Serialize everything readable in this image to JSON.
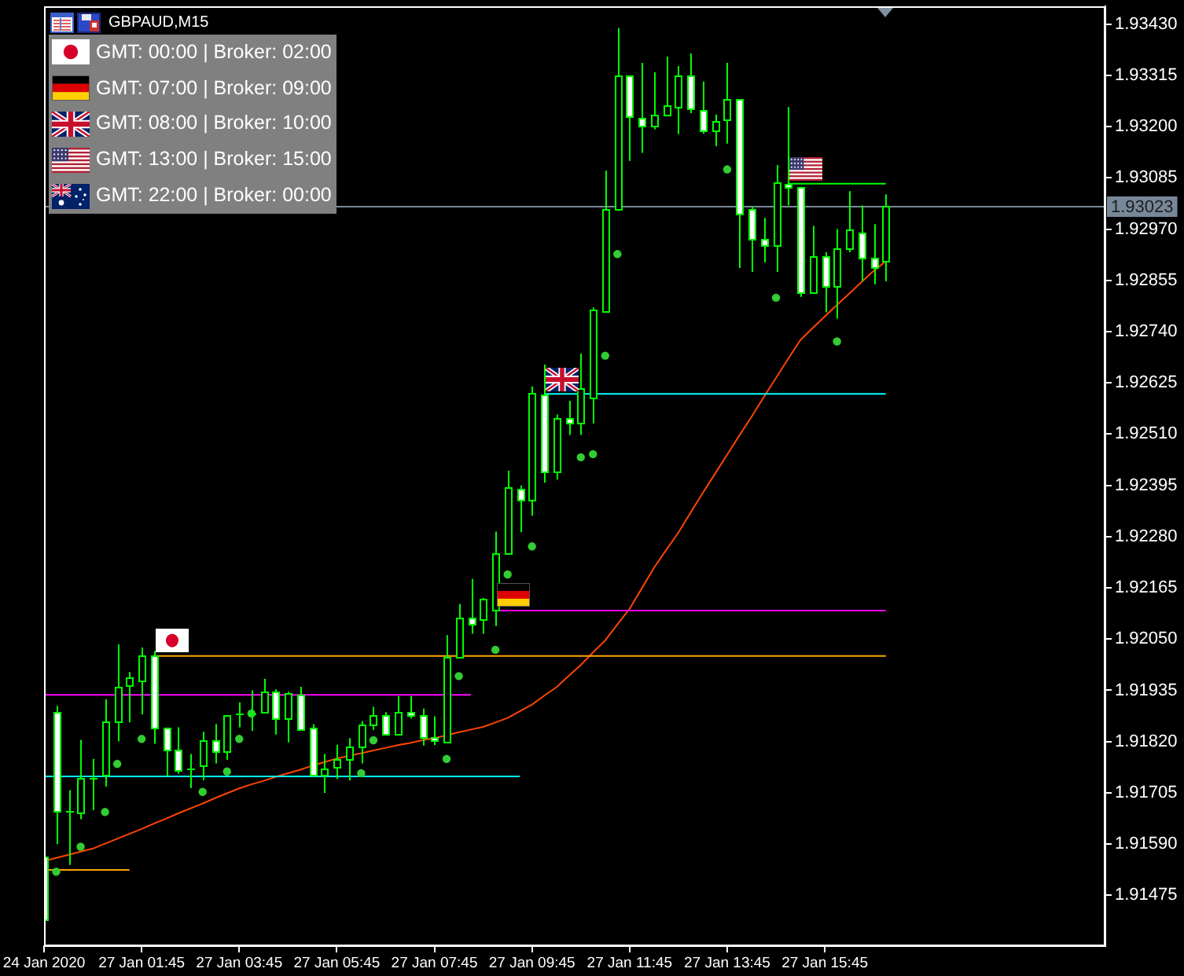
{
  "chart_data": {
    "type": "candlestick",
    "title": "GBPAUD,M15",
    "annotations": [
      "GMT: 00:00 | Broker: 02:00",
      "GMT: 07:00 | Broker: 09:00",
      "GMT: 08:00 | Broker: 10:00",
      "GMT: 13:00 | Broker: 15:00",
      "GMT: 22:00 | Broker: 00:00"
    ],
    "color": "#00ff00",
    "colors": [
      "#ffffff",
      "#ffffff",
      "#00ff00",
      "#000000",
      "#00ff00",
      "#000000",
      "#000000",
      "#000000",
      "#000000",
      "#ffffff",
      "#ffffff",
      "#ffffff",
      "#00ff00",
      "#000000",
      "#ffffff",
      "#000000",
      "#00ff00",
      "#00ff00",
      "#000000",
      "#ffffff",
      "#000000",
      "#ffffff",
      "#ffffff",
      "#000000",
      "#000000",
      "#000000",
      "#000000",
      "#000000",
      "#ffffff",
      "#000000",
      "#ffffff",
      "#ffffff",
      "#ffffff",
      "#000000",
      "#000000",
      "#ffffff",
      "#000000",
      "#000000",
      "#000000",
      "#ffffff",
      "#000000",
      "#ffffff",
      "#000000",
      "#ffffff",
      "#000000",
      "#000000",
      "#000000",
      "#000000",
      "#ffffff",
      "#ffffff",
      "#000000",
      "#000000",
      "#000000",
      "#ffffff",
      "#ffffff",
      "#000000",
      "#000000",
      "#ffffff",
      "#ffffff",
      "#ffffff",
      "#000000",
      "#ffffff",
      "#ffffff",
      "#000000",
      "#ffffff",
      "#000000",
      "#000000",
      "#ffffff",
      "#ffffff",
      "#000000",
      null,
      null,
      null,
      null,
      null,
      null,
      null,
      null,
      null,
      null,
      null,
      null,
      null,
      null,
      null,
      null,
      null,
      null
    ],
    "categories": [
      "24 Jan 2020",
      null,
      null,
      null,
      null,
      null,
      null,
      null,
      "27 Jan 01:45",
      null,
      null,
      null,
      null,
      null,
      null,
      null,
      "27 Jan 03:45",
      null,
      null,
      null,
      null,
      null,
      null,
      null,
      "27 Jan 05:45",
      null,
      null,
      null,
      null,
      null,
      null,
      null,
      "27 Jan 07:45",
      null,
      null,
      null,
      null,
      null,
      null,
      null,
      "27 Jan 09:45",
      null,
      null,
      null,
      null,
      null,
      null,
      null,
      "27 Jan 11:45",
      null,
      null,
      null,
      null,
      null,
      null,
      null,
      "27 Jan 13:45",
      null,
      null,
      null,
      null,
      null,
      null,
      null,
      "27 Jan 15:45",
      null,
      null,
      null,
      null,
      null,
      null,
      null,
      null,
      null,
      null,
      null,
      null,
      null,
      null,
      null,
      null,
      null,
      null,
      null,
      null,
      null,
      null,
      null
    ],
    "ohlc": [
      [
        1.91561,
        1.91568,
        1.91413,
        1.9142
      ],
      [
        1.91886,
        1.919,
        1.9159,
        1.91664
      ],
      [
        1.91663,
        1.91711,
        1.91543,
        1.91663
      ],
      [
        1.9166,
        1.91824,
        1.91646,
        1.91739
      ],
      [
        1.91739,
        1.91781,
        1.91666,
        1.91739
      ],
      [
        1.91744,
        1.91915,
        1.91719,
        1.91865
      ],
      [
        1.91864,
        1.92038,
        1.91821,
        1.91942
      ],
      [
        1.91946,
        1.91976,
        1.91863,
        1.91963
      ],
      [
        1.91958,
        1.92031,
        1.91881,
        1.92012
      ],
      [
        1.92012,
        1.92023,
        1.91815,
        1.91851
      ],
      [
        1.91851,
        1.91851,
        1.91742,
        1.91801
      ],
      [
        1.91802,
        1.91852,
        1.91748,
        1.91755
      ],
      [
        1.91758,
        1.91792,
        1.91716,
        1.91758
      ],
      [
        1.91765,
        1.91842,
        1.91733,
        1.91824
      ],
      [
        1.91823,
        1.91859,
        1.91771,
        1.91797
      ],
      [
        1.91797,
        1.91879,
        1.91779,
        1.91879
      ],
      [
        1.91883,
        1.91908,
        1.91852,
        1.91883
      ],
      [
        1.91883,
        1.91935,
        1.91844,
        1.91883
      ],
      [
        1.91888,
        1.91961,
        1.91884,
        1.91932
      ],
      [
        1.91932,
        1.91937,
        1.91836,
        1.91872
      ],
      [
        1.91872,
        1.91932,
        1.91818,
        1.91928
      ],
      [
        1.91926,
        1.91943,
        1.91848,
        1.91848
      ],
      [
        1.91852,
        1.91859,
        1.91744,
        1.91744
      ],
      [
        1.91744,
        1.91792,
        1.91705,
        1.9176
      ],
      [
        1.91763,
        1.91813,
        1.91736,
        1.91782
      ],
      [
        1.91781,
        1.91828,
        1.91733,
        1.91809
      ],
      [
        1.91808,
        1.91866,
        1.91771,
        1.91859
      ],
      [
        1.91857,
        1.91898,
        1.91846,
        1.9188
      ],
      [
        1.9188,
        1.91886,
        1.91833,
        1.91836
      ],
      [
        1.91836,
        1.91922,
        1.91836,
        1.91887
      ],
      [
        1.91887,
        1.91922,
        1.91872,
        1.91878
      ],
      [
        1.9188,
        1.91894,
        1.91811,
        1.91829
      ],
      [
        1.91831,
        1.91877,
        1.91812,
        1.91824
      ],
      [
        1.91821,
        1.92059,
        1.91821,
        1.9201
      ],
      [
        1.9201,
        1.92129,
        1.9201,
        1.92097
      ],
      [
        1.92097,
        1.92185,
        1.92062,
        1.92085
      ],
      [
        1.92095,
        1.92142,
        1.92062,
        1.92142
      ],
      [
        1.92114,
        1.92291,
        1.92079,
        1.92244
      ],
      [
        1.92244,
        1.92428,
        1.92244,
        1.92391
      ],
      [
        1.92388,
        1.92395,
        1.9229,
        1.92364
      ],
      [
        1.92363,
        1.92617,
        1.92327,
        1.92602
      ],
      [
        1.926,
        1.92666,
        1.92401,
        1.92426
      ],
      [
        1.92425,
        1.92554,
        1.92408,
        1.92546
      ],
      [
        1.92546,
        1.92585,
        1.92508,
        1.92534
      ],
      [
        1.92534,
        1.92691,
        1.92508,
        1.92612
      ],
      [
        1.92591,
        1.92794,
        1.92534,
        1.92788
      ],
      [
        1.92786,
        1.93101,
        1.92783,
        1.93016
      ],
      [
        1.93015,
        1.93421,
        1.93011,
        1.93314
      ],
      [
        1.93314,
        1.93314,
        1.93123,
        1.93223
      ],
      [
        1.9322,
        1.93343,
        1.93141,
        1.93202
      ],
      [
        1.93202,
        1.93322,
        1.93194,
        1.93227
      ],
      [
        1.93227,
        1.93357,
        1.93227,
        1.93248
      ],
      [
        1.93244,
        1.93336,
        1.93183,
        1.93314
      ],
      [
        1.93314,
        1.93364,
        1.9323,
        1.93241
      ],
      [
        1.93237,
        1.93301,
        1.93184,
        1.93191
      ],
      [
        1.93191,
        1.93227,
        1.93156,
        1.93213
      ],
      [
        1.93216,
        1.93343,
        1.93162,
        1.93262
      ],
      [
        1.93262,
        1.93262,
        1.92883,
        1.93006
      ],
      [
        1.93016,
        1.9302,
        1.92874,
        1.92949
      ],
      [
        1.92949,
        1.92995,
        1.92895,
        1.92935
      ],
      [
        1.92935,
        1.93114,
        1.92874,
        1.93076
      ],
      [
        1.93072,
        1.93244,
        1.93023,
        1.93065
      ],
      [
        1.93065,
        1.93065,
        1.92818,
        1.92827
      ],
      [
        1.92827,
        1.92977,
        1.92827,
        1.92911
      ],
      [
        1.92911,
        1.92918,
        1.92783,
        1.92841
      ],
      [
        1.92841,
        1.9297,
        1.92769,
        1.92928
      ],
      [
        1.92928,
        1.93055,
        1.92918,
        1.9297
      ],
      [
        1.92963,
        1.93023,
        1.92853,
        1.92904
      ],
      [
        1.92907,
        1.92981,
        1.92846,
        1.92883
      ],
      [
        1.92897,
        1.93048,
        1.92853,
        1.93023
      ],
      null,
      null,
      null,
      null,
      null,
      null,
      null,
      null,
      null,
      null,
      null,
      null,
      null,
      null,
      null,
      null,
      null,
      null
    ],
    "series": [
      {
        "type": "line",
        "color": "#ffa500",
        "values": [
          1.91532,
          1.91532,
          1.91532,
          1.91532,
          1.91532,
          1.91532,
          1.91532,
          1.91532,
          null,
          null,
          null,
          null,
          null,
          null,
          null,
          null,
          null,
          null,
          null,
          null,
          null,
          null,
          null,
          null,
          null,
          null,
          null,
          null,
          null,
          null,
          null,
          null,
          null,
          null,
          null,
          null,
          null,
          null,
          null,
          null,
          null,
          null,
          null,
          null,
          null,
          null,
          null,
          null,
          null,
          null,
          null,
          null,
          null,
          null,
          null,
          null,
          null,
          null,
          null,
          null,
          null,
          null,
          null,
          null,
          null,
          null,
          null,
          null,
          null,
          null,
          null,
          null,
          null,
          null,
          null,
          null,
          null,
          null,
          null,
          null,
          null,
          null,
          null,
          null,
          null,
          null,
          null,
          null
        ]
      },
      {
        "type": "line",
        "color": "#ff00ff",
        "values": [
          1.91925,
          1.91925,
          1.91925,
          1.91925,
          1.91925,
          1.91925,
          1.91925,
          1.91925,
          1.91925,
          1.91925,
          1.91925,
          1.91925,
          1.91925,
          1.91925,
          1.91925,
          1.91925,
          1.91925,
          1.91925,
          1.91925,
          1.91925,
          1.91925,
          1.91925,
          1.91925,
          1.91925,
          1.91925,
          1.91925,
          1.91925,
          1.91925,
          1.91925,
          1.91925,
          1.91925,
          1.91925,
          1.91925,
          1.91925,
          1.91925,
          1.91925,
          null,
          null,
          null,
          null,
          null,
          null,
          null,
          null,
          null,
          null,
          null,
          null,
          null,
          null,
          null,
          null,
          null,
          null,
          null,
          null,
          null,
          null,
          null,
          null,
          null,
          null,
          null,
          null,
          null,
          null,
          null,
          null,
          null,
          null,
          null,
          null,
          null,
          null,
          null,
          null,
          null,
          null,
          null,
          null,
          null,
          null,
          null,
          null,
          null,
          null,
          null,
          null
        ]
      },
      {
        "type": "line",
        "color": "#00ffff",
        "values": [
          1.91742,
          1.91742,
          1.91742,
          1.91742,
          1.91742,
          1.91742,
          1.91742,
          1.91742,
          1.91742,
          1.91742,
          1.91742,
          1.91742,
          1.91742,
          1.91742,
          1.91742,
          1.91742,
          1.91742,
          1.91742,
          1.91742,
          1.91742,
          1.91742,
          1.91742,
          1.91742,
          1.91742,
          1.91742,
          1.91742,
          1.91742,
          1.91742,
          1.91742,
          1.91742,
          1.91742,
          1.91742,
          1.91742,
          1.91742,
          1.91742,
          1.91742,
          1.91742,
          1.91742,
          1.91742,
          1.91742,
          null,
          null,
          null,
          null,
          null,
          null,
          null,
          null,
          null,
          null,
          null,
          null,
          null,
          null,
          null,
          null,
          null,
          null,
          null,
          null,
          null,
          null,
          null,
          null,
          null,
          null,
          null,
          null,
          null,
          null,
          null,
          null,
          null,
          null,
          null,
          null,
          null,
          null,
          null,
          null,
          null,
          null,
          null,
          null,
          null,
          null,
          null,
          null
        ]
      },
      {
        "type": "line",
        "color": "#ffa500",
        "values": [
          null,
          null,
          null,
          null,
          null,
          null,
          null,
          null,
          null,
          1.92012,
          1.92012,
          1.92012,
          1.92012,
          1.92012,
          1.92012,
          1.92012,
          1.92012,
          1.92012,
          1.92012,
          1.92012,
          1.92012,
          1.92012,
          1.92012,
          1.92012,
          1.92012,
          1.92012,
          1.92012,
          1.92012,
          1.92012,
          1.92012,
          1.92012,
          1.92012,
          1.92012,
          1.92012,
          1.92012,
          1.92012,
          1.92012,
          1.92012,
          1.92012,
          1.92012,
          1.92012,
          1.92012,
          1.92012,
          1.92012,
          1.92012,
          1.92012,
          1.92012,
          1.92012,
          1.92012,
          1.92012,
          1.92012,
          1.92012,
          1.92012,
          1.92012,
          1.92012,
          1.92012,
          1.92012,
          1.92012,
          1.92012,
          1.92012,
          1.92012,
          1.92012,
          1.92012,
          1.92012,
          1.92012,
          1.92012,
          1.92012,
          1.92012,
          1.92012,
          1.92012,
          null,
          null,
          null,
          null,
          null,
          null,
          null,
          null,
          null,
          null,
          null,
          null,
          null,
          null,
          null,
          null,
          null,
          null
        ]
      },
      {
        "type": "line",
        "color": "#ff00ff",
        "values": [
          null,
          null,
          null,
          null,
          null,
          null,
          null,
          null,
          null,
          null,
          null,
          null,
          null,
          null,
          null,
          null,
          null,
          null,
          null,
          null,
          null,
          null,
          null,
          null,
          null,
          null,
          null,
          null,
          null,
          null,
          null,
          null,
          null,
          null,
          null,
          null,
          null,
          1.92114,
          1.92114,
          1.92114,
          1.92114,
          1.92114,
          1.92114,
          1.92114,
          1.92114,
          1.92114,
          1.92114,
          1.92114,
          1.92114,
          1.92114,
          1.92114,
          1.92114,
          1.92114,
          1.92114,
          1.92114,
          1.92114,
          1.92114,
          1.92114,
          1.92114,
          1.92114,
          1.92114,
          1.92114,
          1.92114,
          1.92114,
          1.92114,
          1.92114,
          1.92114,
          1.92114,
          1.92114,
          1.92114,
          null,
          null,
          null,
          null,
          null,
          null,
          null,
          null,
          null,
          null,
          null,
          null,
          null,
          null,
          null,
          null,
          null,
          null
        ]
      },
      {
        "type": "line",
        "color": "#00ffff",
        "values": [
          null,
          null,
          null,
          null,
          null,
          null,
          null,
          null,
          null,
          null,
          null,
          null,
          null,
          null,
          null,
          null,
          null,
          null,
          null,
          null,
          null,
          null,
          null,
          null,
          null,
          null,
          null,
          null,
          null,
          null,
          null,
          null,
          null,
          null,
          null,
          null,
          null,
          null,
          null,
          null,
          null,
          1.926,
          1.926,
          1.926,
          1.926,
          1.926,
          1.926,
          1.926,
          1.926,
          1.926,
          1.926,
          1.926,
          1.926,
          1.926,
          1.926,
          1.926,
          1.926,
          1.926,
          1.926,
          1.926,
          1.926,
          1.926,
          1.926,
          1.926,
          1.926,
          1.926,
          1.926,
          1.926,
          1.926,
          1.926,
          null,
          null,
          null,
          null,
          null,
          null,
          null,
          null,
          null,
          null,
          null,
          null,
          null,
          null,
          null,
          null,
          null,
          null
        ]
      },
      {
        "type": "line",
        "color": "#00ff00",
        "values": [
          null,
          null,
          null,
          null,
          null,
          null,
          null,
          null,
          null,
          null,
          null,
          null,
          null,
          null,
          null,
          null,
          null,
          null,
          null,
          null,
          null,
          null,
          null,
          null,
          null,
          null,
          null,
          null,
          null,
          null,
          null,
          null,
          null,
          null,
          null,
          null,
          null,
          null,
          null,
          null,
          null,
          null,
          null,
          null,
          null,
          null,
          null,
          null,
          null,
          null,
          null,
          null,
          null,
          null,
          null,
          null,
          null,
          null,
          null,
          null,
          null,
          1.93072,
          1.93072,
          1.93072,
          1.93072,
          1.93072,
          1.93072,
          1.93072,
          1.93072,
          1.93072,
          null,
          null,
          null,
          null,
          null,
          null,
          null,
          null,
          null,
          null,
          null,
          null,
          null,
          null,
          null,
          null,
          null,
          null
        ]
      },
      {
        "type": "line",
        "color": "#ff4500",
        "values": [
          1.91552,
          1.91559,
          1.91566,
          1.91573,
          1.9158,
          1.91591,
          1.91602,
          1.91613,
          1.91624,
          1.91636,
          1.91647,
          1.91659,
          1.9167,
          1.91681,
          1.91693,
          1.91704,
          1.91715,
          1.91724,
          1.91732,
          1.91741,
          1.91749,
          1.91757,
          1.91766,
          1.91774,
          1.91782,
          1.91788,
          1.91794,
          1.918,
          1.91806,
          1.91812,
          1.91817,
          1.91823,
          1.91828,
          1.91834,
          1.91841,
          1.91847,
          1.91853,
          1.91863,
          1.91873,
          1.91888,
          1.91903,
          1.91923,
          1.91942,
          1.91967,
          1.91992,
          1.9202,
          1.92047,
          1.92083,
          1.92118,
          1.92164,
          1.9221,
          1.9225,
          1.92289,
          1.92334,
          1.92378,
          1.92421,
          1.92464,
          1.92507,
          1.92549,
          1.92593,
          1.92636,
          1.92679,
          1.92721,
          1.92748,
          1.92774,
          1.928,
          1.92825,
          1.92851,
          1.92876,
          1.92898,
          null,
          null,
          null,
          null,
          null,
          null,
          null,
          null,
          null,
          null,
          null,
          null,
          null,
          null,
          null,
          null,
          null,
          null
        ]
      },
      {
        "type": "scatter",
        "color": "#32cd32",
        "marker": "circle",
        "values": [
          null,
          1.91528,
          null,
          1.91584,
          null,
          1.91662,
          1.9177,
          null,
          1.91826,
          null,
          null,
          null,
          null,
          1.91707,
          null,
          1.91753,
          1.91826,
          1.91883,
          null,
          null,
          null,
          null,
          null,
          null,
          null,
          null,
          1.91749,
          1.91823,
          null,
          null,
          null,
          null,
          null,
          1.91781,
          1.91967,
          null,
          null,
          1.92026,
          1.92195,
          null,
          1.92258,
          null,
          null,
          null,
          1.92458,
          1.92465,
          1.92686,
          1.92914,
          null,
          null,
          null,
          null,
          null,
          null,
          null,
          null,
          1.93104,
          null,
          null,
          null,
          1.92816,
          null,
          null,
          null,
          null,
          1.92718,
          null,
          null,
          null,
          null,
          null,
          null,
          null,
          null,
          null,
          null,
          null,
          null,
          null,
          null,
          null,
          null,
          null,
          null,
          null,
          null,
          null,
          null
        ]
      }
    ],
    "ref_lines": [
      {
        "axis": "y",
        "value": 1.93023,
        "label": "1.93023",
        "color": "#778899"
      }
    ],
    "ylim": [
      1.91361,
      1.9347
    ],
    "yticks": [
      1.91475,
      {
        "value": 1.9159,
        "label": "1.91590"
      },
      1.91705,
      {
        "value": 1.9182,
        "label": "1.91820"
      },
      1.91935,
      {
        "value": 1.9205,
        "label": "1.92050"
      },
      1.92165,
      {
        "value": 1.9228,
        "label": "1.92280"
      },
      1.92395,
      {
        "value": 1.9251,
        "label": "1.92510"
      },
      1.92625,
      {
        "value": 1.9274,
        "label": "1.92740"
      },
      1.92855,
      {
        "value": 1.9297,
        "label": "1.92970"
      },
      1.93085,
      {
        "value": 1.932,
        "label": "1.93200"
      },
      1.93315,
      {
        "value": 1.9343,
        "label": "1.93430"
      }
    ]
  }
}
